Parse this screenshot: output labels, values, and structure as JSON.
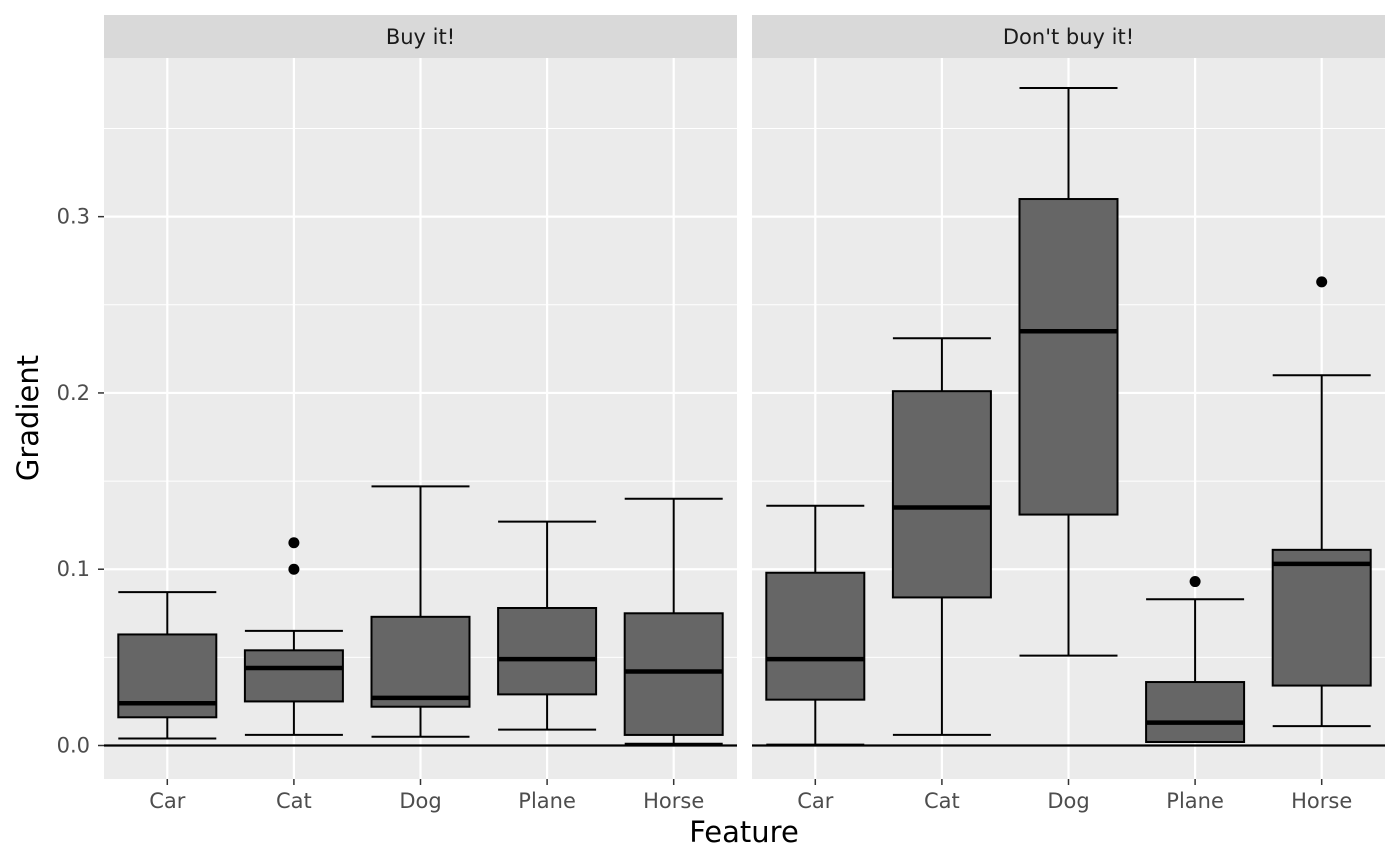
{
  "chart_data": {
    "type": "boxplot",
    "xlabel": "Feature",
    "ylabel": "Gradient",
    "ylim": [
      -0.019,
      0.39
    ],
    "y_ticks": [
      0.0,
      0.1,
      0.2,
      0.3
    ],
    "y_tick_labels": [
      "0.0",
      "0.1",
      "0.2",
      "0.3"
    ],
    "categories": [
      "Car",
      "Cat",
      "Dog",
      "Plane",
      "Horse"
    ],
    "reference_line_y": 0.0,
    "grid": true,
    "colors": {
      "panel_bg": "#ebebeb",
      "strip_bg": "#d9d9d9",
      "grid_major": "#ffffff",
      "box_fill": "#666666",
      "line": "#000000"
    },
    "panels": [
      {
        "title": "Buy it!",
        "boxes": [
          {
            "category": "Car",
            "whisker_low": 0.004,
            "q1": 0.016,
            "median": 0.024,
            "q3": 0.063,
            "whisker_high": 0.087,
            "outliers": []
          },
          {
            "category": "Cat",
            "whisker_low": 0.006,
            "q1": 0.025,
            "median": 0.044,
            "q3": 0.054,
            "whisker_high": 0.065,
            "outliers": [
              0.1,
              0.115
            ]
          },
          {
            "category": "Dog",
            "whisker_low": 0.005,
            "q1": 0.022,
            "median": 0.027,
            "q3": 0.073,
            "whisker_high": 0.147,
            "outliers": []
          },
          {
            "category": "Plane",
            "whisker_low": 0.009,
            "q1": 0.029,
            "median": 0.049,
            "q3": 0.078,
            "whisker_high": 0.127,
            "outliers": []
          },
          {
            "category": "Horse",
            "whisker_low": 0.001,
            "q1": 0.006,
            "median": 0.042,
            "q3": 0.075,
            "whisker_high": 0.14,
            "outliers": []
          }
        ]
      },
      {
        "title": "Don't buy it!",
        "boxes": [
          {
            "category": "Car",
            "whisker_low": 0.0005,
            "q1": 0.026,
            "median": 0.049,
            "q3": 0.098,
            "whisker_high": 0.136,
            "outliers": []
          },
          {
            "category": "Cat",
            "whisker_low": 0.006,
            "q1": 0.084,
            "median": 0.135,
            "q3": 0.201,
            "whisker_high": 0.231,
            "outliers": []
          },
          {
            "category": "Dog",
            "whisker_low": 0.051,
            "q1": 0.131,
            "median": 0.235,
            "q3": 0.31,
            "whisker_high": 0.373,
            "outliers": []
          },
          {
            "category": "Plane",
            "whisker_low": 0.002,
            "q1": 0.002,
            "median": 0.013,
            "q3": 0.036,
            "whisker_high": 0.083,
            "outliers": [
              0.093
            ]
          },
          {
            "category": "Horse",
            "whisker_low": 0.011,
            "q1": 0.034,
            "median": 0.103,
            "q3": 0.111,
            "whisker_high": 0.21,
            "outliers": [
              0.263
            ]
          }
        ]
      }
    ]
  }
}
